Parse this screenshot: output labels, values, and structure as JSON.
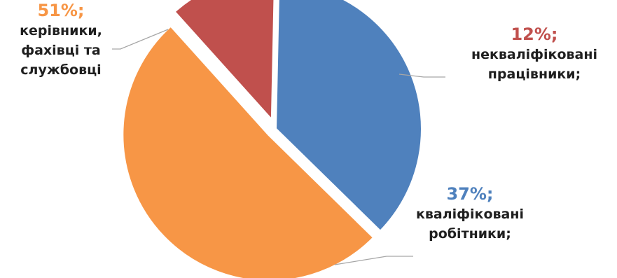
{
  "chart_data": {
    "type": "pie",
    "title": "",
    "slices": [
      {
        "label": "некваліфіковані\nпрацівники;",
        "value": 12,
        "value_label": "12%;",
        "color": "#c0504d",
        "exploded": true
      },
      {
        "label": "кваліфіковані\nробітники;",
        "value": 37,
        "value_label": "37%;",
        "color": "#4f81bd",
        "exploded": false
      },
      {
        "label": "керівники,\nфахівці та\nслужбовці",
        "value": 51,
        "value_label": "51%;",
        "color": "#f79646",
        "exploded": true
      }
    ]
  }
}
